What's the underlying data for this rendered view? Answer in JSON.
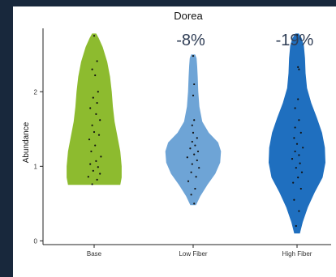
{
  "colors": {
    "frame_background": "#18283c",
    "plot_background": "#ffffff"
  },
  "chart_data": {
    "type": "violin",
    "title": "Dorea",
    "xlabel": "",
    "ylabel": "Abundance",
    "ylim": [
      -0.05,
      2.85
    ],
    "yticks": [
      0,
      1,
      2
    ],
    "grid": false,
    "legend": "none",
    "categories": [
      "Base",
      "Low Fiber",
      "High Fiber"
    ],
    "colors": [
      "#8dbb2f",
      "#6ea4d6",
      "#1f6fbf"
    ],
    "annotations": [
      {
        "category": "Low Fiber",
        "text": "-8%"
      },
      {
        "category": "High Fiber",
        "text": "-19%"
      }
    ],
    "violins": [
      {
        "name": "Base",
        "min": 0.75,
        "max": 2.78,
        "profile": [
          [
            0.75,
            0.92
          ],
          [
            0.85,
            0.97
          ],
          [
            1.0,
            0.97
          ],
          [
            1.2,
            0.92
          ],
          [
            1.4,
            0.82
          ],
          [
            1.6,
            0.72
          ],
          [
            1.8,
            0.66
          ],
          [
            2.0,
            0.62
          ],
          [
            2.2,
            0.56
          ],
          [
            2.4,
            0.46
          ],
          [
            2.6,
            0.3
          ],
          [
            2.72,
            0.16
          ],
          [
            2.78,
            0.07
          ]
        ],
        "points": [
          [
            0.76,
            -0.1
          ],
          [
            0.82,
            0.15
          ],
          [
            0.86,
            -0.3
          ],
          [
            0.9,
            0.3
          ],
          [
            0.94,
            -0.05
          ],
          [
            0.99,
            0.2
          ],
          [
            1.03,
            -0.2
          ],
          [
            1.07,
            0.1
          ],
          [
            1.13,
            0.35
          ],
          [
            1.2,
            -0.15
          ],
          [
            1.28,
            0.05
          ],
          [
            1.36,
            -0.25
          ],
          [
            1.42,
            0.25
          ],
          [
            1.46,
            0.0
          ],
          [
            1.55,
            -0.1
          ],
          [
            1.62,
            0.3
          ],
          [
            1.7,
            0.1
          ],
          [
            1.78,
            -0.2
          ],
          [
            1.85,
            0.15
          ],
          [
            1.92,
            -0.05
          ],
          [
            2.0,
            0.2
          ],
          [
            2.22,
            0.05
          ],
          [
            2.3,
            -0.1
          ],
          [
            2.41,
            0.15
          ],
          [
            2.75,
            0.0
          ]
        ]
      },
      {
        "name": "Low Fiber",
        "min": 0.48,
        "max": 2.5,
        "profile": [
          [
            0.48,
            0.1
          ],
          [
            0.6,
            0.25
          ],
          [
            0.75,
            0.5
          ],
          [
            0.9,
            0.78
          ],
          [
            1.05,
            0.95
          ],
          [
            1.2,
            0.98
          ],
          [
            1.32,
            0.88
          ],
          [
            1.45,
            0.55
          ],
          [
            1.6,
            0.32
          ],
          [
            1.8,
            0.22
          ],
          [
            2.0,
            0.18
          ],
          [
            2.2,
            0.16
          ],
          [
            2.35,
            0.14
          ],
          [
            2.45,
            0.12
          ],
          [
            2.5,
            0.07
          ]
        ],
        "points": [
          [
            0.5,
            0.05
          ],
          [
            0.62,
            -0.1
          ],
          [
            0.7,
            0.1
          ],
          [
            0.8,
            -0.25
          ],
          [
            0.86,
            0.15
          ],
          [
            0.92,
            -0.1
          ],
          [
            0.98,
            0.3
          ],
          [
            1.03,
            -0.05
          ],
          [
            1.08,
            0.2
          ],
          [
            1.12,
            -0.3
          ],
          [
            1.16,
            0.05
          ],
          [
            1.2,
            0.25
          ],
          [
            1.24,
            -0.15
          ],
          [
            1.28,
            0.1
          ],
          [
            1.33,
            -0.05
          ],
          [
            1.38,
            0.2
          ],
          [
            1.45,
            0.0
          ],
          [
            1.55,
            -0.05
          ],
          [
            1.62,
            0.05
          ],
          [
            1.95,
            0.0
          ],
          [
            2.1,
            0.05
          ],
          [
            2.48,
            0.0
          ]
        ]
      },
      {
        "name": "High Fiber",
        "min": 0.1,
        "max": 2.78,
        "profile": [
          [
            0.1,
            0.1
          ],
          [
            0.25,
            0.2
          ],
          [
            0.45,
            0.38
          ],
          [
            0.65,
            0.62
          ],
          [
            0.85,
            0.9
          ],
          [
            1.05,
            1.0
          ],
          [
            1.25,
            0.98
          ],
          [
            1.45,
            0.88
          ],
          [
            1.65,
            0.7
          ],
          [
            1.85,
            0.5
          ],
          [
            2.05,
            0.35
          ],
          [
            2.25,
            0.3
          ],
          [
            2.45,
            0.28
          ],
          [
            2.62,
            0.24
          ],
          [
            2.72,
            0.16
          ],
          [
            2.78,
            0.06
          ]
        ],
        "points": [
          [
            0.2,
            -0.05
          ],
          [
            0.4,
            0.1
          ],
          [
            0.55,
            -0.15
          ],
          [
            0.7,
            0.2
          ],
          [
            0.78,
            -0.2
          ],
          [
            0.85,
            0.05
          ],
          [
            0.92,
            0.25
          ],
          [
            0.98,
            -0.05
          ],
          [
            1.04,
            0.15
          ],
          [
            1.1,
            -0.25
          ],
          [
            1.15,
            0.1
          ],
          [
            1.2,
            -0.1
          ],
          [
            1.25,
            0.3
          ],
          [
            1.3,
            0.0
          ],
          [
            1.38,
            -0.15
          ],
          [
            1.45,
            0.2
          ],
          [
            1.52,
            -0.1
          ],
          [
            1.62,
            0.1
          ],
          [
            1.78,
            -0.1
          ],
          [
            1.9,
            0.05
          ],
          [
            2.3,
            0.1
          ],
          [
            2.33,
            0.05
          ],
          [
            2.76,
            0.0
          ]
        ]
      }
    ]
  }
}
